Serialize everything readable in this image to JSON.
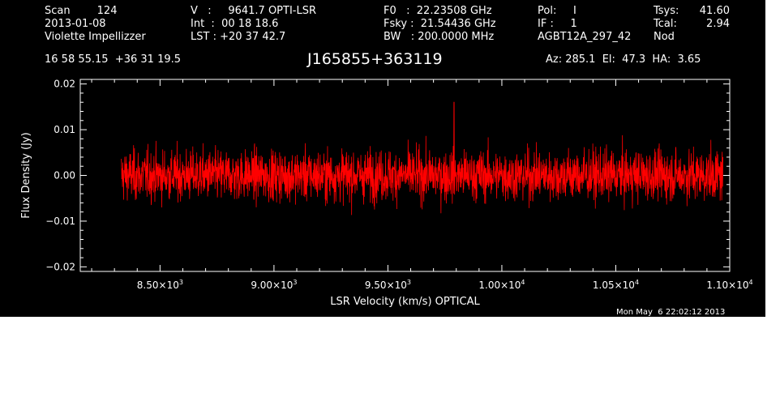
{
  "header": {
    "col1": [
      "Scan        124",
      "2013-01-08",
      "Violette Impellizzer"
    ],
    "col2": [
      "V   :     9641.7 OPTI-LSR",
      "Int  :  00 18 18.6",
      "LST : +20 37 42.7"
    ],
    "col3": [
      "F0   :  22.23508 GHz",
      "Fsky :  21.54436 GHz",
      "BW   : 200.0000 MHz"
    ],
    "col4": [
      "Pol:     I",
      "IF :     1",
      "AGBT12A_297_42"
    ],
    "col5a": [
      "Tsys:",
      "Tcal:",
      "Nod"
    ],
    "col5b": [
      "41.60",
      "2.94",
      ""
    ],
    "coords": "16 58 55.15  +36 31 19.5",
    "source": "J165855+363119",
    "azelha": "Az: 285.1  El:  47.3  HA:  3.65",
    "timestamp": "Mon May  6 22:02:12 2013"
  },
  "chart_data": {
    "type": "line",
    "title": "J165855+363119",
    "xlabel": "LSR Velocity (km/s) OPTICAL",
    "ylabel": "Flux Density (Jy)",
    "xlim": [
      8150,
      11000
    ],
    "ylim": [
      -0.021,
      0.021
    ],
    "x_range": [
      8330,
      10970
    ],
    "noise_sigma_jy": 0.0038,
    "peak": {
      "x": 9790,
      "y": 0.016
    },
    "x_ticks": [
      {
        "value": 8500,
        "mant": "8.50",
        "exp": "3"
      },
      {
        "value": 9000,
        "mant": "9.00",
        "exp": "3"
      },
      {
        "value": 9500,
        "mant": "9.50",
        "exp": "3"
      },
      {
        "value": 10000,
        "mant": "1.00",
        "exp": "4"
      },
      {
        "value": 10500,
        "mant": "1.05",
        "exp": "4"
      },
      {
        "value": 11000,
        "mant": "1.10",
        "exp": "4"
      }
    ],
    "y_ticks": [
      {
        "value": 0.02,
        "label": "0.02"
      },
      {
        "value": 0.01,
        "label": "0.01"
      },
      {
        "value": 0.0,
        "label": "0.00"
      },
      {
        "value": -0.01,
        "label": "−0.01"
      },
      {
        "value": -0.02,
        "label": "−0.02"
      }
    ],
    "line_color": "#ff0000",
    "axis_color": "#ffffff",
    "background": "#000000"
  }
}
